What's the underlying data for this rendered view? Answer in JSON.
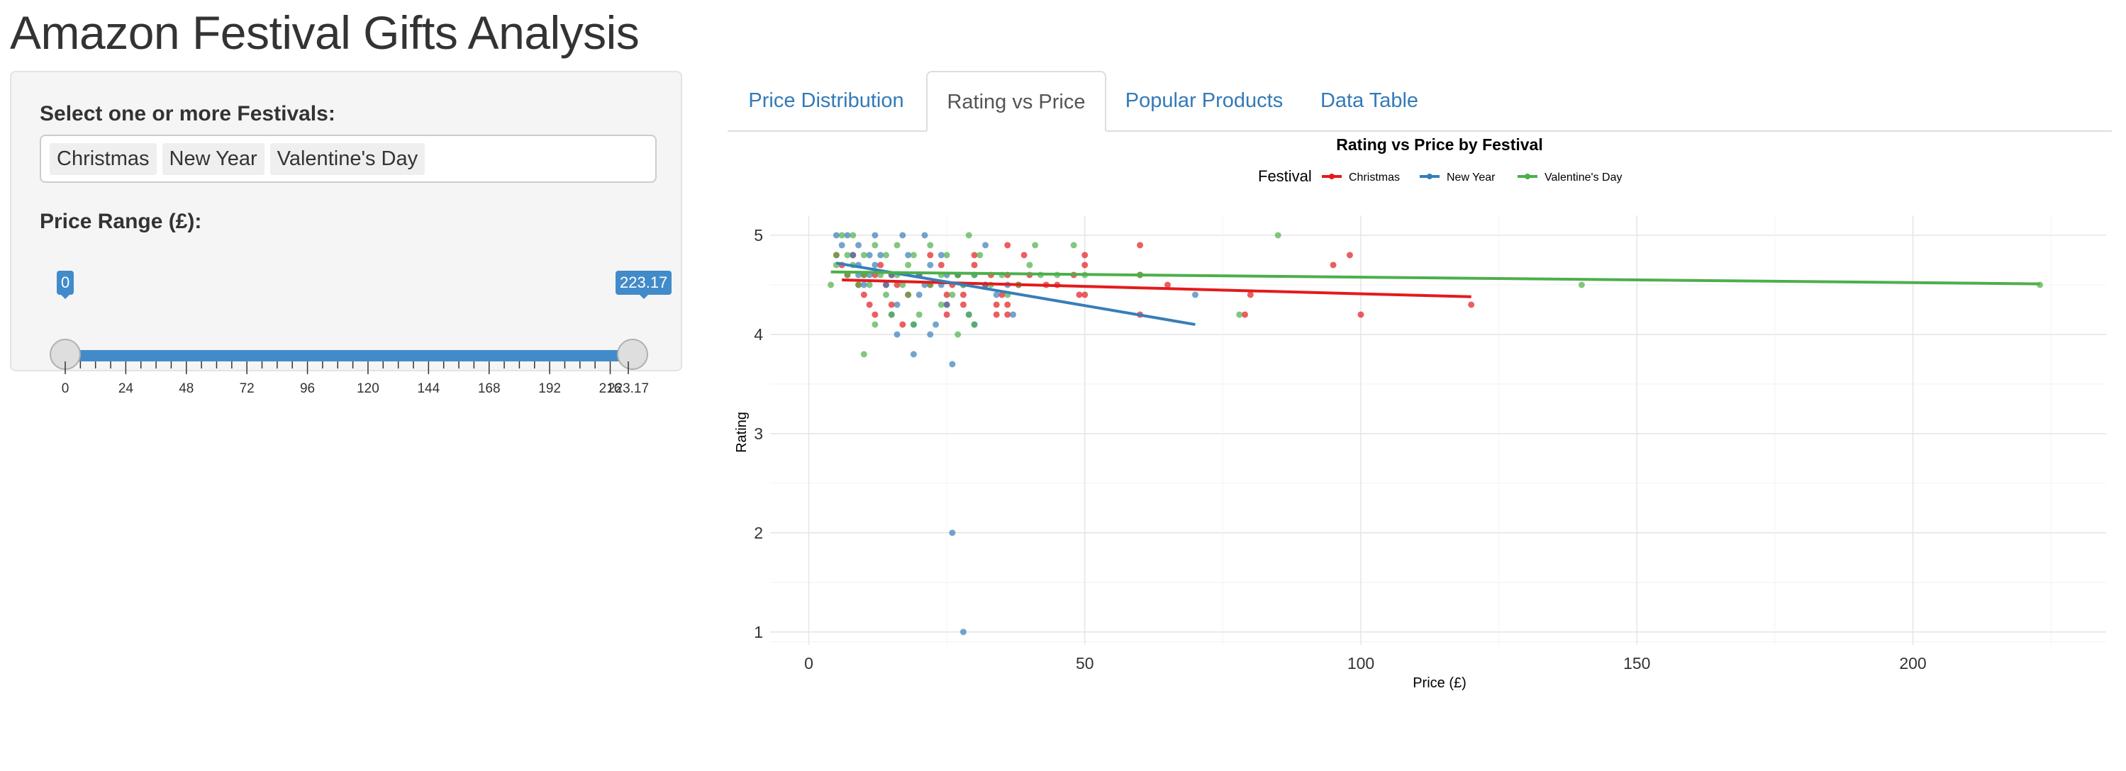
{
  "app": {
    "title": "Amazon Festival Gifts Analysis"
  },
  "sidebar": {
    "festival_label": "Select one or more Festivals:",
    "festivals_selected": [
      "Christmas",
      "New Year",
      "Valentine's Day"
    ],
    "price_label": "Price Range (£):",
    "slider": {
      "min": 0,
      "max": 223.17,
      "from": 0,
      "to": 223.17,
      "from_label": "0",
      "to_label": "223.17",
      "tick_labels": [
        "0",
        "24",
        "48",
        "72",
        "96",
        "120",
        "144",
        "168",
        "192",
        "216",
        "223.17"
      ],
      "color": "#428bca"
    }
  },
  "tabs": [
    {
      "label": "Price Distribution",
      "active": false
    },
    {
      "label": "Rating vs Price",
      "active": true
    },
    {
      "label": "Popular Products",
      "active": false
    },
    {
      "label": "Data Table",
      "active": false
    }
  ],
  "chart_data": {
    "type": "scatter",
    "title": "Rating vs Price by Festival",
    "xlabel": "Price (£)",
    "ylabel": "Rating",
    "xlim": [
      -7,
      235
    ],
    "ylim": [
      0.87,
      5.2
    ],
    "x_ticks": [
      0,
      50,
      100,
      150,
      200
    ],
    "y_ticks": [
      1,
      2,
      3,
      4,
      5
    ],
    "grid": true,
    "legend": {
      "title": "Festival",
      "position": "top"
    },
    "series": [
      {
        "name": "Christmas",
        "color": "#e41a1c",
        "points": [
          [
            5,
            4.8
          ],
          [
            6,
            4.7
          ],
          [
            7,
            4.6
          ],
          [
            8,
            4.8
          ],
          [
            9,
            4.5
          ],
          [
            10,
            4.6
          ],
          [
            10,
            4.4
          ],
          [
            11,
            4.3
          ],
          [
            12,
            4.6
          ],
          [
            12,
            4.2
          ],
          [
            13,
            4.7
          ],
          [
            14,
            4.5
          ],
          [
            15,
            4.6
          ],
          [
            15,
            4.3
          ],
          [
            16,
            4.5
          ],
          [
            17,
            4.1
          ],
          [
            18,
            4.4
          ],
          [
            20,
            4.6
          ],
          [
            22,
            4.5
          ],
          [
            22,
            4.8
          ],
          [
            24,
            4.7
          ],
          [
            25,
            4.4
          ],
          [
            25,
            4.3
          ],
          [
            25,
            4.2
          ],
          [
            26,
            4.5
          ],
          [
            27,
            4.6
          ],
          [
            28,
            4.4
          ],
          [
            28,
            4.3
          ],
          [
            30,
            4.8
          ],
          [
            30,
            4.7
          ],
          [
            32,
            4.5
          ],
          [
            33,
            4.6
          ],
          [
            34,
            4.3
          ],
          [
            34,
            4.2
          ],
          [
            35,
            4.4
          ],
          [
            36,
            4.6
          ],
          [
            36,
            4.9
          ],
          [
            36,
            4.3
          ],
          [
            36,
            4.2
          ],
          [
            38,
            4.5
          ],
          [
            39,
            4.8
          ],
          [
            40,
            4.6
          ],
          [
            43,
            4.5
          ],
          [
            45,
            4.5
          ],
          [
            48,
            4.6
          ],
          [
            49,
            4.4
          ],
          [
            50,
            4.4
          ],
          [
            50,
            4.8
          ],
          [
            50,
            4.7
          ],
          [
            60,
            4.9
          ],
          [
            60,
            4.6
          ],
          [
            60,
            4.2
          ],
          [
            65,
            4.5
          ],
          [
            80,
            4.4
          ],
          [
            79,
            4.2
          ],
          [
            95,
            4.7
          ],
          [
            98,
            4.8
          ],
          [
            100,
            4.2
          ],
          [
            120,
            4.3
          ]
        ],
        "trend": [
          [
            6,
            4.55
          ],
          [
            120,
            4.38
          ]
        ]
      },
      {
        "name": "New Year",
        "color": "#377eb8",
        "points": [
          [
            5,
            5
          ],
          [
            6,
            4.9
          ],
          [
            7,
            5
          ],
          [
            8,
            4.8
          ],
          [
            9,
            4.7
          ],
          [
            9,
            4.6
          ],
          [
            9,
            4.9
          ],
          [
            10,
            4.5
          ],
          [
            11,
            4.6
          ],
          [
            11,
            4.8
          ],
          [
            12,
            4.7
          ],
          [
            12,
            5
          ],
          [
            13,
            4.8
          ],
          [
            14,
            4.5
          ],
          [
            15,
            4.6
          ],
          [
            15,
            4.2
          ],
          [
            16,
            4.3
          ],
          [
            16,
            4
          ],
          [
            17,
            5
          ],
          [
            18,
            4.8
          ],
          [
            19,
            4.1
          ],
          [
            19,
            3.8
          ],
          [
            20,
            4.6
          ],
          [
            20,
            4.4
          ],
          [
            21,
            5
          ],
          [
            21,
            4.5
          ],
          [
            22,
            4.7
          ],
          [
            22,
            4
          ],
          [
            23,
            4.1
          ],
          [
            24,
            4.8
          ],
          [
            24,
            4.5
          ],
          [
            25,
            4.3
          ],
          [
            25,
            4.6
          ],
          [
            26,
            3.7
          ],
          [
            26,
            2
          ],
          [
            27,
            4.6
          ],
          [
            28,
            4.5
          ],
          [
            28,
            1
          ],
          [
            29,
            4.2
          ],
          [
            30,
            4.6
          ],
          [
            30,
            4.1
          ],
          [
            32,
            4.9
          ],
          [
            32,
            4.5
          ],
          [
            34,
            4.4
          ],
          [
            36,
            4.5
          ],
          [
            37,
            4.2
          ],
          [
            70,
            4.4
          ]
        ],
        "trend": [
          [
            5,
            4.72
          ],
          [
            70,
            4.1
          ]
        ]
      },
      {
        "name": "Valentine's Day",
        "color": "#4daf4a",
        "points": [
          [
            4,
            4.5
          ],
          [
            5,
            4.7
          ],
          [
            5,
            4.8
          ],
          [
            6,
            5
          ],
          [
            7,
            4.6
          ],
          [
            7,
            4.8
          ],
          [
            8,
            4.7
          ],
          [
            8,
            5
          ],
          [
            9,
            4.5
          ],
          [
            10,
            4.6
          ],
          [
            10,
            4.8
          ],
          [
            10,
            3.8
          ],
          [
            11,
            4.5
          ],
          [
            12,
            4.9
          ],
          [
            12,
            4.1
          ],
          [
            13,
            4.6
          ],
          [
            14,
            4.4
          ],
          [
            14,
            4.8
          ],
          [
            15,
            4.2
          ],
          [
            16,
            4.6
          ],
          [
            16,
            4.9
          ],
          [
            17,
            4.5
          ],
          [
            18,
            4.7
          ],
          [
            18,
            4.4
          ],
          [
            19,
            4.8
          ],
          [
            19,
            4.1
          ],
          [
            20,
            4.2
          ],
          [
            22,
            4.9
          ],
          [
            22,
            4.5
          ],
          [
            24,
            4.6
          ],
          [
            24,
            4.3
          ],
          [
            25,
            4.8
          ],
          [
            26,
            4.4
          ],
          [
            27,
            4.6
          ],
          [
            27,
            4
          ],
          [
            28,
            4.5
          ],
          [
            29,
            5
          ],
          [
            29,
            4.2
          ],
          [
            30,
            4.6
          ],
          [
            30,
            4.1
          ],
          [
            31,
            4.8
          ],
          [
            33,
            4.5
          ],
          [
            35,
            4.6
          ],
          [
            36,
            4.4
          ],
          [
            38,
            4.5
          ],
          [
            40,
            4.7
          ],
          [
            41,
            4.9
          ],
          [
            42,
            4.6
          ],
          [
            45,
            4.6
          ],
          [
            48,
            4.9
          ],
          [
            50,
            4.6
          ],
          [
            60,
            4.6
          ],
          [
            78,
            4.2
          ],
          [
            85,
            5
          ],
          [
            140,
            4.5
          ],
          [
            223,
            4.5
          ]
        ],
        "trend": [
          [
            4,
            4.63
          ],
          [
            223,
            4.51
          ]
        ]
      }
    ]
  }
}
